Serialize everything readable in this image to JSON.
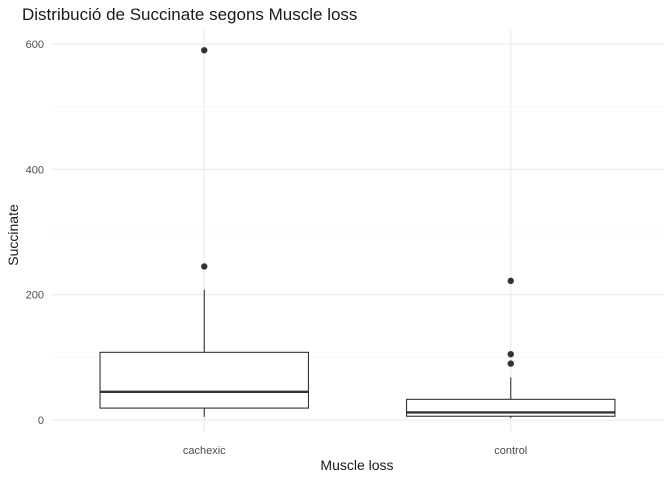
{
  "chart_data": {
    "type": "boxplot",
    "title": "Distribució de Succinate segons Muscle loss",
    "xlabel": "Muscle loss",
    "ylabel": "Succinate",
    "categories": [
      "cachexic",
      "control"
    ],
    "yticks": [
      0,
      200,
      400,
      600
    ],
    "ylim": [
      -3,
      620
    ],
    "grid": true,
    "boxes": [
      {
        "category": "cachexic",
        "whisker_low": 5,
        "q1": 19,
        "median": 45,
        "q3": 108,
        "whisker_high": 208,
        "outliers": [
          245,
          590
        ]
      },
      {
        "category": "control",
        "whisker_low": 3,
        "q1": 6,
        "median": 12,
        "q3": 33,
        "whisker_high": 68,
        "outliers": [
          90,
          105,
          222
        ]
      }
    ]
  }
}
